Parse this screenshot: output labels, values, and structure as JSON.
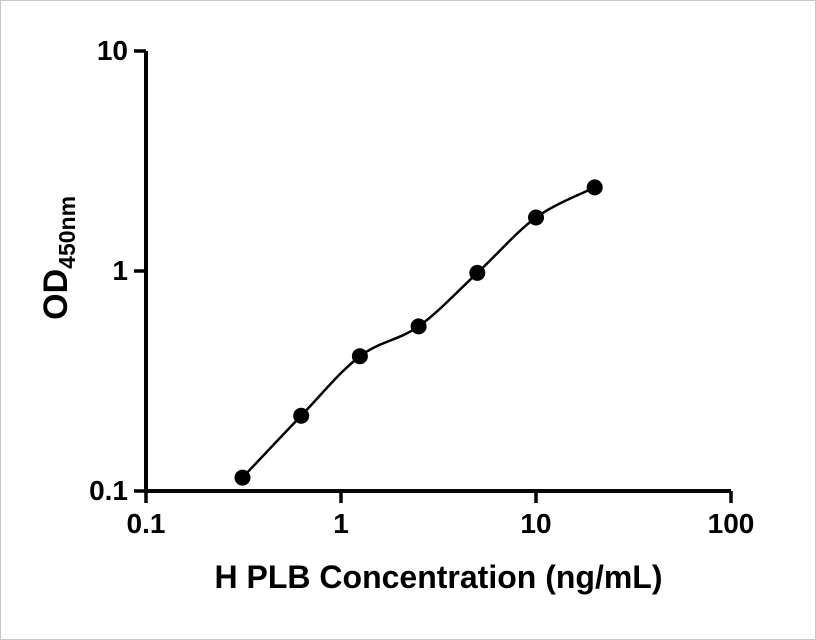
{
  "chart_data": {
    "type": "scatter",
    "title": "",
    "xlabel": "H PLB Concentration (ng/mL)",
    "ylabel_main": "OD",
    "ylabel_sub": "450nm",
    "x": [
      0.3125,
      0.625,
      1.25,
      2.5,
      5,
      10,
      20
    ],
    "y": [
      0.115,
      0.22,
      0.41,
      0.56,
      0.98,
      1.75,
      2.4
    ],
    "x_scale": "log",
    "y_scale": "log",
    "xlim": [
      0.1,
      100
    ],
    "ylim": [
      0.1,
      10
    ],
    "x_ticks": [
      0.1,
      1,
      10,
      100
    ],
    "x_tick_labels": [
      "0.1",
      "1",
      "10",
      "100"
    ],
    "y_ticks": [
      0.1,
      1,
      10
    ],
    "y_tick_labels": [
      "0.1",
      "1",
      "10"
    ],
    "grid": false,
    "legend": "none",
    "curve_style": "smooth-fit-through-points",
    "marker_color": "#000000",
    "line_color": "#000000",
    "background_color": "#ffffff"
  }
}
